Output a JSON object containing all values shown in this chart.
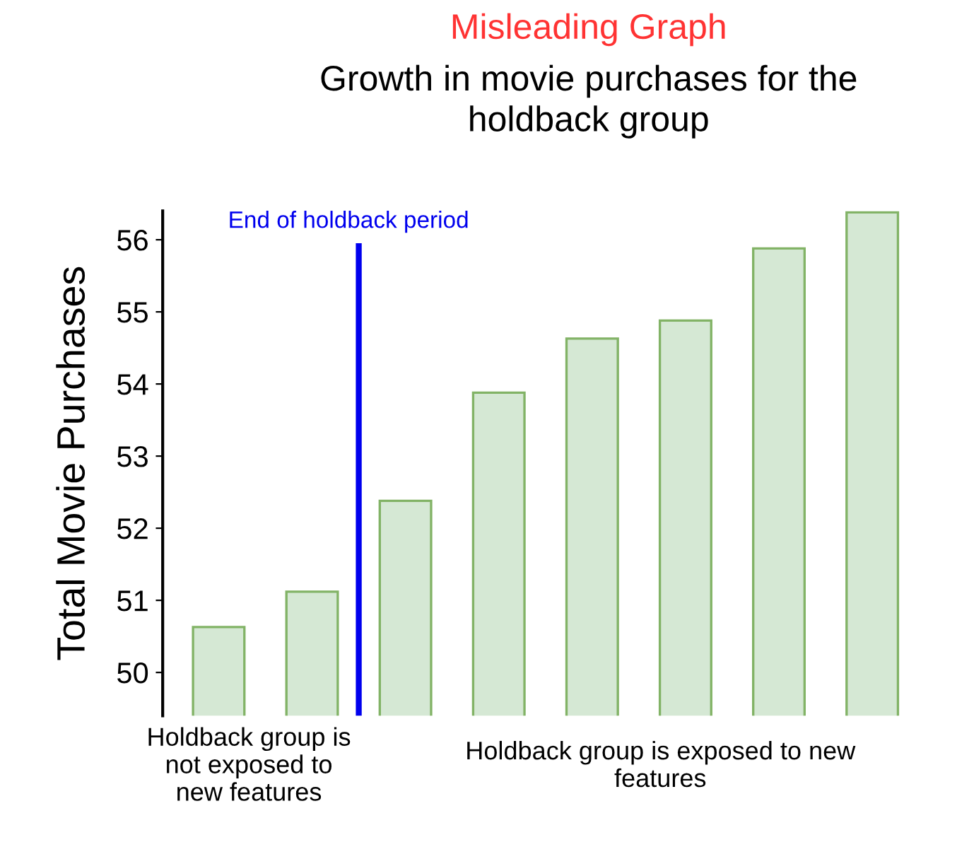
{
  "chart_data": {
    "type": "bar",
    "title": "Misleading Graph",
    "subtitle": "Growth in movie purchases for the\nholdback group",
    "ylabel": "Total Movie Purchases",
    "categories": [
      null,
      null,
      null,
      null,
      null,
      null,
      null,
      null
    ],
    "values": [
      50.63,
      51.12,
      52.38,
      53.88,
      54.63,
      54.88,
      55.88,
      56.38
    ],
    "color": "#d5e8d4",
    "ylim": [
      49.4,
      56.4
    ],
    "yticks": [
      50,
      51,
      52,
      53,
      54,
      55,
      56
    ],
    "grid": false,
    "annotations": [
      "End of holdback period",
      "Holdback group is\nnot exposed to\nnew features",
      "Holdback group is exposed to new\nfeatures"
    ]
  }
}
